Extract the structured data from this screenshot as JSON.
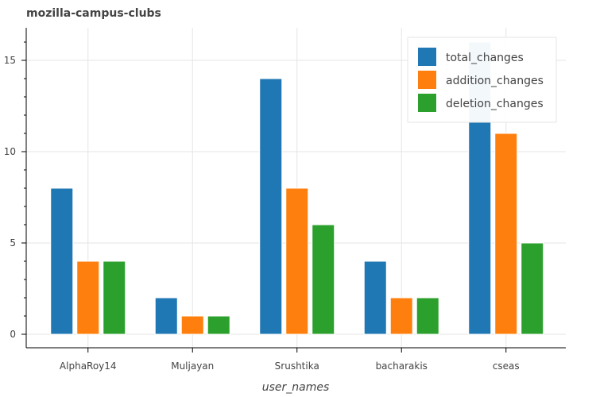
{
  "chart_data": {
    "type": "bar",
    "title": "mozilla-campus-clubs",
    "xlabel": "user_names",
    "ylabel": "",
    "categories": [
      "AlphaRoy14",
      "Muljayan",
      "Srushtika",
      "bacharakis",
      "cseas"
    ],
    "series": [
      {
        "name": "total_changes",
        "color": "#1f77b4",
        "values": [
          8,
          2,
          14,
          4,
          16
        ]
      },
      {
        "name": "addition_changes",
        "color": "#ff7f0e",
        "values": [
          4,
          1,
          8,
          2,
          11
        ]
      },
      {
        "name": "deletion_changes",
        "color": "#2ca02c",
        "values": [
          4,
          1,
          6,
          2,
          5
        ]
      }
    ],
    "ylim": [
      -0.8,
      16.8
    ],
    "yticks": [
      0,
      5,
      10,
      15
    ],
    "grid": true,
    "legend_position": "top-right"
  }
}
